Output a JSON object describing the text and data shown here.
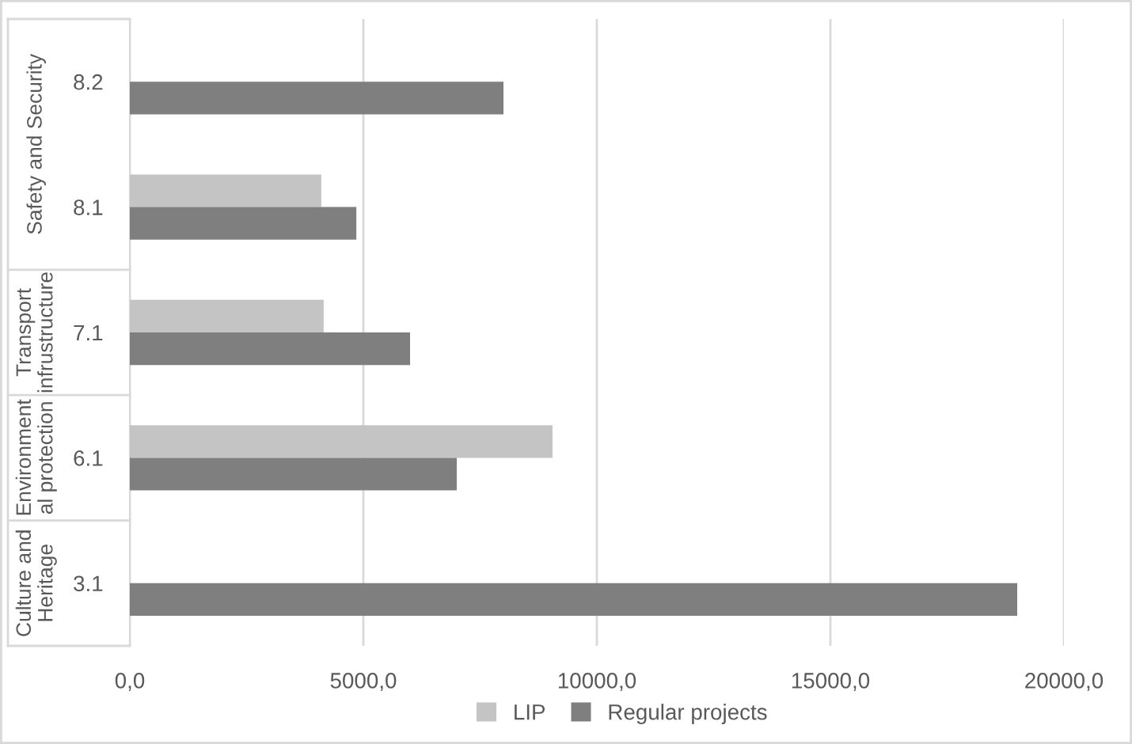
{
  "chart_data": {
    "type": "bar",
    "orientation": "horizontal",
    "categories": [
      "8.2",
      "8.1",
      "7.1",
      "6.1",
      "3.1"
    ],
    "series": [
      {
        "name": "LIP",
        "color": "#c4c4c4",
        "values": [
          null,
          4100,
          4150,
          9050,
          null
        ]
      },
      {
        "name": "Regular projects",
        "color": "#7f7f7f",
        "values": [
          8000,
          4850,
          6000,
          7000,
          19000
        ]
      }
    ],
    "xlim": [
      0,
      20000
    ],
    "xticks": [
      {
        "value": 0,
        "label": "0,0"
      },
      {
        "value": 5000,
        "label": "5000,0"
      },
      {
        "value": 10000,
        "label": "10000,0"
      },
      {
        "value": 15000,
        "label": "15000,0"
      },
      {
        "value": 20000,
        "label": "20000,0"
      }
    ],
    "grid": "x",
    "legend": "bottom",
    "annotations": [
      "Safety and Security",
      "Transport\ninfrustructure",
      "Environment\nal protection",
      "Culture and\nHeritage"
    ]
  }
}
